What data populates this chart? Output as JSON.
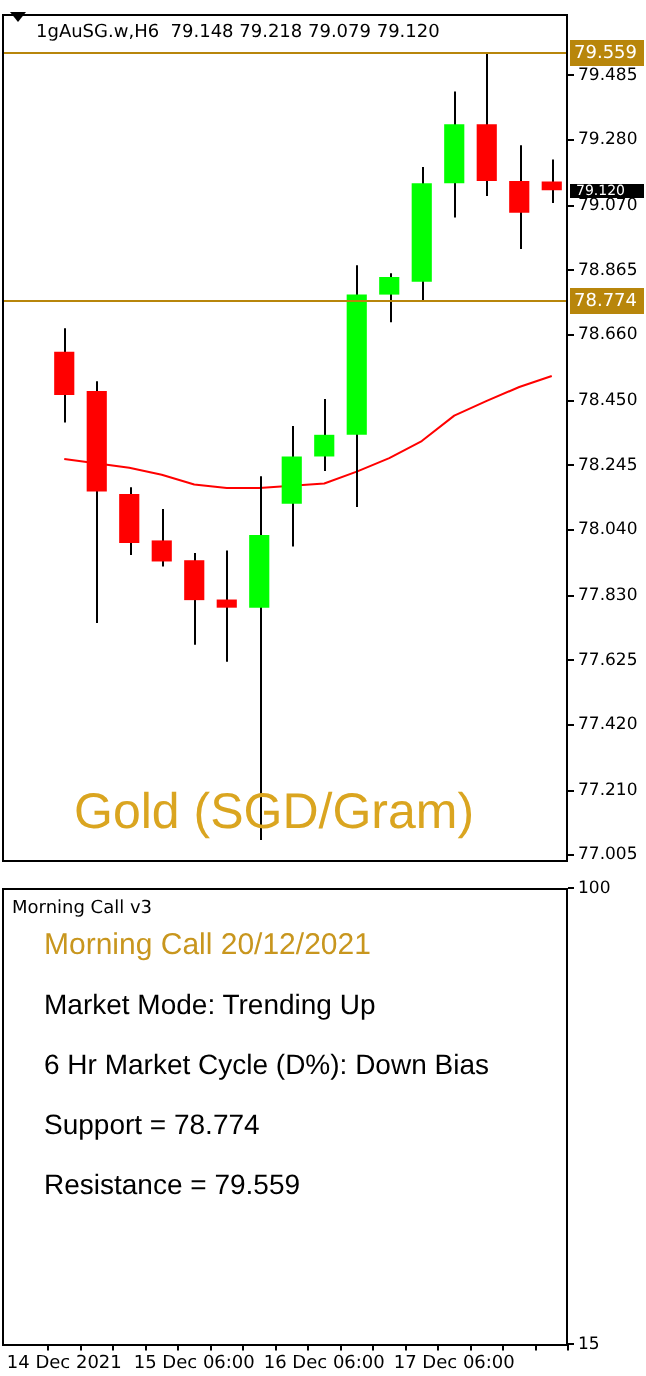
{
  "chart_data": [
    {
      "type": "candlestick",
      "title": "1gAuSG.w,H6  79.148 79.218 79.079 79.120",
      "categories": [
        null,
        null,
        null,
        null,
        null,
        null,
        null,
        null,
        null,
        null,
        null,
        null,
        null,
        null,
        null,
        null
      ],
      "ohlc": [
        [
          78.606,
          78.681,
          78.381,
          78.469
        ],
        [
          78.481,
          78.512,
          77.743,
          78.162
        ],
        [
          78.154,
          78.175,
          77.96,
          77.998
        ],
        [
          78.006,
          78.106,
          77.923,
          77.939
        ],
        [
          77.943,
          77.966,
          77.674,
          77.816
        ],
        [
          77.818,
          77.974,
          77.62,
          77.792
        ],
        [
          77.792,
          78.21,
          77.053,
          78.023
        ],
        [
          78.123,
          78.37,
          77.987,
          78.273
        ],
        [
          78.273,
          78.456,
          78.227,
          78.342
        ],
        [
          78.342,
          78.881,
          78.112,
          78.788
        ],
        [
          78.788,
          78.856,
          78.7,
          78.844
        ],
        [
          78.829,
          79.194,
          78.769,
          79.142
        ],
        [
          79.142,
          79.434,
          79.033,
          79.33
        ],
        [
          79.33,
          79.559,
          79.102,
          79.149
        ],
        [
          79.149,
          79.263,
          78.933,
          79.048
        ],
        [
          79.148,
          79.218,
          79.079,
          79.12
        ]
      ],
      "colors": [
        "#ff0000",
        "#ff0000",
        "#ff0000",
        "#ff0000",
        "#ff0000",
        "#ff0000",
        "#00ff00",
        "#00ff00",
        "#00ff00",
        "#00ff00",
        "#00ff00",
        "#00ff00",
        "#00ff00",
        "#ff0000",
        "#ff0000",
        "#ff0000"
      ],
      "series": [
        {
          "type": "line",
          "color": "#ff0000",
          "values": [
            78.265,
            null,
            78.237,
            78.215,
            78.184,
            78.173,
            78.173,
            null,
            78.187,
            78.225,
            78.268,
            78.322,
            78.403,
            78.45,
            78.494,
            78.529
          ]
        }
      ],
      "ylim": [
        76.99,
        79.68
      ],
      "yticks": [
        {
          "value": 79.485,
          "label": "79.485"
        },
        {
          "value": 79.28,
          "label": "79.280"
        },
        {
          "value": 79.07,
          "label": "79.070"
        },
        {
          "value": 78.865,
          "label": "78.865"
        },
        {
          "value": 78.66,
          "label": "78.660"
        },
        {
          "value": 78.45,
          "label": "78.450"
        },
        {
          "value": 78.245,
          "label": "78.245"
        },
        {
          "value": 78.04,
          "label": "78.040"
        },
        {
          "value": 77.83,
          "label": "77.830"
        },
        {
          "value": 77.625,
          "label": "77.625"
        },
        {
          "value": 77.42,
          "label": "77.420"
        },
        {
          "value": 77.21,
          "label": "77.210"
        },
        {
          "value": 77.005,
          "label": "77.005"
        }
      ],
      "ref_lines": [
        {
          "axis": "y",
          "value": 79.559,
          "label": "79.559",
          "color": "#b8860b"
        },
        {
          "axis": "y",
          "value": 78.774,
          "label": "78.774",
          "color": "#b8860b"
        }
      ],
      "annotations": [
        "Gold (SGD/Gram)",
        "79.120"
      ],
      "tick_labels": "y"
    },
    {
      "type": "line",
      "title": "Morning Call v3",
      "categories": [
        "14 Dec 2021",
        null,
        null,
        null,
        "15 Dec 06:00",
        null,
        null,
        null,
        "16 Dec 06:00",
        null,
        null,
        null,
        "17 Dec 06:00",
        null,
        null,
        null
      ],
      "ylim": [
        15,
        100
      ],
      "yticks": [
        15,
        100
      ],
      "annotations": [
        "Morning Call 20/12/2021",
        "Market Mode: Trending Up",
        "6 Hr Market Cycle (D%): Down Bias",
        "Support = 78.774",
        "Resistance = 79.559"
      ]
    }
  ]
}
